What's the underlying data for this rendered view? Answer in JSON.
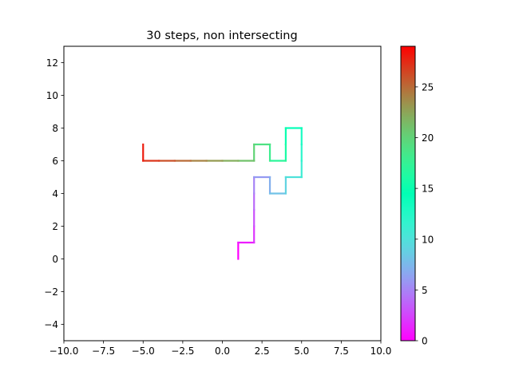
{
  "chart_data": {
    "type": "line",
    "title": "30 steps, non intersecting",
    "xlabel": "",
    "ylabel": "",
    "xlim": [
      -10,
      10
    ],
    "ylim": [
      -5,
      13
    ],
    "x_ticks": [
      -10,
      -7.5,
      -5,
      -2.5,
      0,
      2.5,
      5,
      7.5,
      10
    ],
    "x_tick_labels": [
      "−10.0",
      "−7.5",
      "−5.0",
      "−2.5",
      "0.0",
      "2.5",
      "5.0",
      "7.5",
      "10.0"
    ],
    "y_ticks": [
      -4,
      -2,
      0,
      2,
      4,
      6,
      8,
      10,
      12
    ],
    "y_tick_labels": [
      "−4",
      "−2",
      "0",
      "2",
      "4",
      "6",
      "8",
      "10",
      "12"
    ],
    "grid": false,
    "colormap": "rainbow",
    "colorbar": {
      "range": [
        0,
        29
      ],
      "ticks": [
        0,
        5,
        10,
        15,
        20,
        25
      ],
      "tick_labels": [
        "0",
        "5",
        "10",
        "15",
        "20",
        "25"
      ]
    },
    "path": [
      [
        1,
        0
      ],
      [
        1,
        1
      ],
      [
        2,
        1
      ],
      [
        2,
        2
      ],
      [
        2,
        3
      ],
      [
        2,
        4
      ],
      [
        2,
        5
      ],
      [
        3,
        5
      ],
      [
        3,
        4
      ],
      [
        4,
        4
      ],
      [
        4,
        5
      ],
      [
        5,
        5
      ],
      [
        5,
        6
      ],
      [
        5,
        7
      ],
      [
        5,
        8
      ],
      [
        4,
        8
      ],
      [
        4,
        7
      ],
      [
        4,
        6
      ],
      [
        3,
        6
      ],
      [
        3,
        7
      ],
      [
        2,
        7
      ],
      [
        2,
        6
      ],
      [
        1,
        6
      ],
      [
        0,
        6
      ],
      [
        -1,
        6
      ],
      [
        -2,
        6
      ],
      [
        -3,
        6
      ],
      [
        -4,
        6
      ],
      [
        -5,
        6
      ],
      [
        -5,
        7
      ]
    ]
  }
}
